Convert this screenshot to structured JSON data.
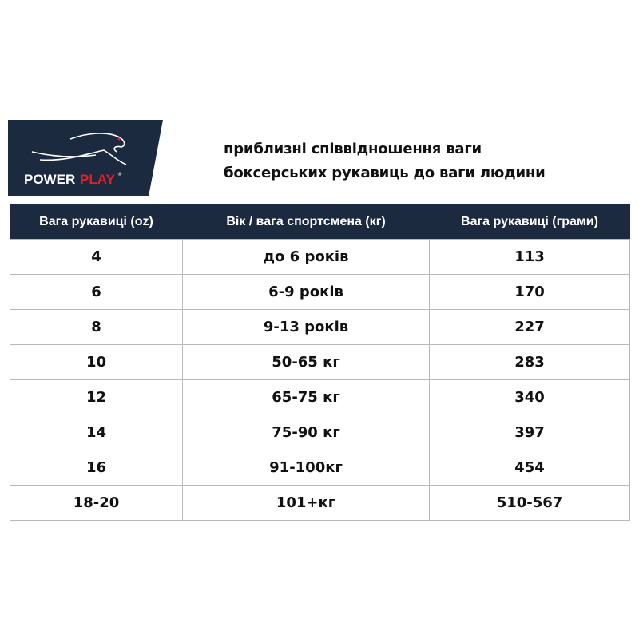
{
  "logo": {
    "brand_left": "POWER",
    "brand_right": "PLAY",
    "mark": "®",
    "bg_color": "#1c2a40",
    "accent_color": "#e31e24"
  },
  "title": {
    "line1": "приблизні співвідношення ваги",
    "line2": "боксерських рукавиць до ваги людини"
  },
  "table": {
    "headers": [
      "Вага рукавиці (oz)",
      "Вік / вага спортсмена (кг)",
      "Вага рукавиці (грами)"
    ],
    "rows": [
      [
        "4",
        "до 6 років",
        "113"
      ],
      [
        "6",
        "6-9 років",
        "170"
      ],
      [
        "8",
        "9-13 років",
        "227"
      ],
      [
        "10",
        "50-65 кг",
        "283"
      ],
      [
        "12",
        "65-75 кг",
        "340"
      ],
      [
        "14",
        "75-90 кг",
        "397"
      ],
      [
        "16",
        "91-100кг",
        "454"
      ],
      [
        "18-20",
        "101+кг",
        "510-567"
      ]
    ]
  }
}
